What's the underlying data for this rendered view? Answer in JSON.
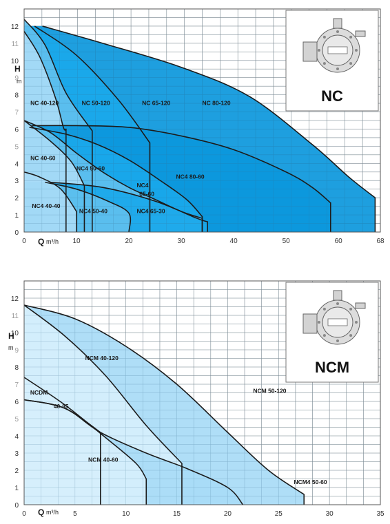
{
  "chart_data": [
    {
      "type": "area",
      "badge": "NC",
      "xlabel": "Q",
      "xunit": "m³/h",
      "ylabel": "H",
      "yunit": "m",
      "xlim": [
        0,
        68
      ],
      "ylim": [
        0,
        13
      ],
      "grid": true,
      "xticks": [
        "0",
        "10",
        "20",
        "30",
        "40",
        "50",
        "60",
        "68"
      ],
      "yticks": [
        "0",
        "1",
        "2",
        "3",
        "4",
        "5",
        "6",
        "7",
        "8",
        "9",
        "10",
        "11",
        "12"
      ],
      "series": [
        {
          "name": "NC 80-120",
          "color": "#0b97dc",
          "x": [
            3.5,
            15,
            30,
            43,
            55,
            62,
            67
          ],
          "y": [
            12,
            11,
            9.6,
            7.9,
            5.1,
            3.2,
            2
          ]
        },
        {
          "name": "NC 65-120",
          "color": "#1aa8ea",
          "x": [
            2,
            10,
            18,
            24
          ],
          "y": [
            12,
            10.3,
            7.7,
            5.2
          ]
        },
        {
          "name": "NC 50-120",
          "color": "#5fc0ee",
          "x": [
            0,
            4,
            8,
            13
          ],
          "y": [
            12.4,
            10.9,
            8.1,
            5.9
          ]
        },
        {
          "name": "NC 40-120",
          "color": "#a8dbf6",
          "x": [
            0,
            3,
            6,
            7.5,
            8
          ],
          "y": [
            11.7,
            10.2,
            7.8,
            6.1,
            6
          ]
        },
        {
          "name": "NC4 80-60",
          "color": "#0b97dc",
          "x": [
            1.5,
            10,
            20,
            30,
            40,
            50,
            55,
            58.5
          ],
          "y": [
            6.2,
            6.2,
            6.1,
            5.6,
            4.8,
            3.5,
            2.6,
            1.7
          ]
        },
        {
          "name": "NC4 65-60",
          "color": "#1aa8ea",
          "x": [
            1,
            8,
            14,
            20,
            26,
            31,
            34
          ],
          "y": [
            6.1,
            5.7,
            5.1,
            4.2,
            3.0,
            1.9,
            0.9
          ]
        },
        {
          "name": "NC4 50-60",
          "color": "#5fc0ee",
          "x": [
            0,
            5,
            10,
            15,
            20,
            25,
            30,
            34
          ],
          "y": [
            6.5,
            5.8,
            4.6,
            3.5,
            2.6,
            1.9,
            1.2,
            0.8
          ]
        },
        {
          "name": "NC4 40-60",
          "color": "#a8dbf6",
          "x": [
            0,
            5,
            9,
            11.5
          ],
          "y": [
            6.5,
            5.3,
            4.1,
            2.7
          ]
        },
        {
          "name": "NC4 65-30",
          "color": "#1aa8ea",
          "x": [
            5,
            15,
            25,
            33,
            35
          ],
          "y": [
            2.9,
            2.6,
            1.8,
            0.8,
            0.6
          ]
        },
        {
          "name": "NC4 50-40",
          "color": "#5fc0ee",
          "x": [
            4,
            10,
            16,
            20,
            20
          ],
          "y": [
            2.9,
            2.5,
            1.8,
            1.1,
            0
          ]
        },
        {
          "name": "NC4 40-40",
          "color": "#a8dbf6",
          "x": [
            0,
            3,
            7,
            10
          ],
          "y": [
            3.5,
            3.2,
            2.5,
            1.2
          ]
        }
      ],
      "annotations": [
        {
          "text": "NC 40-120",
          "x": 1.2,
          "y": 7.4
        },
        {
          "text": "NC 50-120",
          "x": 11,
          "y": 7.4
        },
        {
          "text": "NC 65-120",
          "x": 22.5,
          "y": 7.4
        },
        {
          "text": "NC 80-120",
          "x": 34,
          "y": 7.4
        },
        {
          "text": "NC 40-60",
          "x": 1.2,
          "y": 4.2
        },
        {
          "text": "NC4 50-60",
          "x": 10,
          "y": 3.6
        },
        {
          "text": "NC4 80-60",
          "x": 29,
          "y": 3.1
        },
        {
          "text": "NC4",
          "x": 21.5,
          "y": 2.6
        },
        {
          "text": "65-60",
          "x": 22,
          "y": 2.1
        },
        {
          "text": "NC4 40-40",
          "x": 1.5,
          "y": 1.4
        },
        {
          "text": "NC4 50-40",
          "x": 10.5,
          "y": 1.1
        },
        {
          "text": "NC4 65-30",
          "x": 21.5,
          "y": 1.1
        }
      ]
    },
    {
      "type": "area",
      "badge": "NCM",
      "xlabel": "Q",
      "xunit": "m³/h",
      "ylabel": "H",
      "yunit": "m",
      "xlim": [
        0,
        35
      ],
      "ylim": [
        0,
        13
      ],
      "grid": true,
      "xticks": [
        "0",
        "5",
        "10",
        "15",
        "20",
        "25",
        "30",
        "35"
      ],
      "yticks": [
        "0",
        "1",
        "2",
        "3",
        "4",
        "5",
        "6",
        "7",
        "8",
        "9",
        "10",
        "11",
        "12"
      ],
      "series": [
        {
          "name": "NCM 50-120",
          "color": "#a8dbf6",
          "x": [
            0,
            5,
            10,
            15,
            20,
            24,
            27.5
          ],
          "y": [
            11.6,
            10.8,
            9.2,
            7.0,
            4.2,
            2.0,
            0.6
          ]
        },
        {
          "name": "NCM 40-120",
          "color": "#d6effc",
          "x": [
            0,
            4,
            8,
            12,
            15.5
          ],
          "y": [
            11.6,
            9.8,
            7.5,
            4.6,
            2.4
          ]
        },
        {
          "name": "NCM4 50-60",
          "color": "#a8dbf6",
          "x": [
            0,
            4,
            7.5,
            12,
            16,
            20,
            21.5
          ],
          "y": [
            6.1,
            5.6,
            4.2,
            3.0,
            2.1,
            1.0,
            0
          ]
        },
        {
          "name": "NCM 40-60",
          "color": "#d6effc",
          "x": [
            0,
            4,
            8,
            11,
            12
          ],
          "y": [
            7.4,
            5.8,
            3.9,
            2.4,
            1.5
          ]
        },
        {
          "name": "NCDM 40-85",
          "color": "#d6effc",
          "x": [
            0,
            4,
            7.5
          ],
          "y": [
            6.1,
            5.6,
            4.2
          ]
        }
      ],
      "annotations": [
        {
          "text": "NCM 40-120",
          "x": 6,
          "y": 8.4
        },
        {
          "text": "NCM 50-120",
          "x": 22.5,
          "y": 6.5
        },
        {
          "text": "NCDM",
          "x": 0.6,
          "y": 6.4
        },
        {
          "text": "40-85",
          "x": 2.9,
          "y": 5.6
        },
        {
          "text": "NCM 40-60",
          "x": 6.3,
          "y": 2.5
        },
        {
          "text": "NCM4 50-60",
          "x": 26.5,
          "y": 1.2
        }
      ]
    }
  ]
}
